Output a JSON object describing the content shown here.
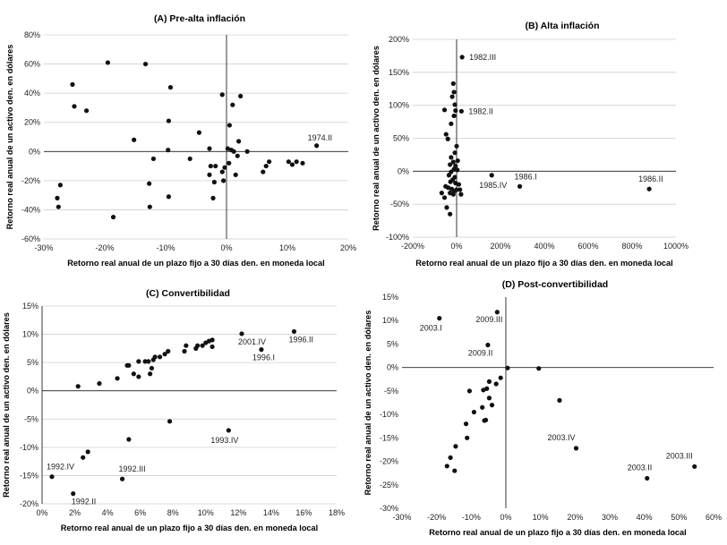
{
  "chart_data": [
    {
      "type": "scatter",
      "title": "(A) Pre-alta inflación",
      "xlabel": "Retorno real anual de un plazo fijo a 30 días den. en moneda local",
      "ylabel": "Retorno real anual de un activo den. en dólares",
      "xlim": [
        -30,
        20
      ],
      "ylim": [
        -60,
        80
      ],
      "xticks": [
        -30,
        -20,
        -10,
        0,
        10,
        20
      ],
      "xtick_labels": [
        "-30%",
        "-20%",
        "-10%",
        "0%",
        "10%",
        "20%"
      ],
      "yticks": [
        -60,
        -40,
        -20,
        0,
        20,
        40,
        60,
        80
      ],
      "ytick_labels": [
        "-60%",
        "-40%",
        "-20%",
        "0%",
        "20%",
        "40%",
        "60%",
        "80%"
      ],
      "grid": "horizontal",
      "points": [
        {
          "x": -19.5,
          "y": 61
        },
        {
          "x": -13.3,
          "y": 60
        },
        {
          "x": -25.3,
          "y": 46
        },
        {
          "x": -25.0,
          "y": 31
        },
        {
          "x": -23.0,
          "y": 28
        },
        {
          "x": -9.2,
          "y": 44
        },
        {
          "x": 1.0,
          "y": 32
        },
        {
          "x": 2.3,
          "y": 38
        },
        {
          "x": -0.7,
          "y": 39
        },
        {
          "x": -9.5,
          "y": 21
        },
        {
          "x": -4.5,
          "y": 13
        },
        {
          "x": 0.5,
          "y": 18
        },
        {
          "x": -15.2,
          "y": 8
        },
        {
          "x": 2.0,
          "y": 7
        },
        {
          "x": -9.6,
          "y": 1
        },
        {
          "x": -2.8,
          "y": 2
        },
        {
          "x": 0.2,
          "y": 2
        },
        {
          "x": 0.8,
          "y": 1
        },
        {
          "x": 1.2,
          "y": 0
        },
        {
          "x": 3.4,
          "y": 0
        },
        {
          "x": 14.8,
          "y": 4,
          "label": "1974.II"
        },
        {
          "x": -12.0,
          "y": -5
        },
        {
          "x": -6.0,
          "y": -5
        },
        {
          "x": 0.4,
          "y": -8
        },
        {
          "x": 1.8,
          "y": -3
        },
        {
          "x": 7.0,
          "y": -7
        },
        {
          "x": 6.5,
          "y": -10
        },
        {
          "x": 10.2,
          "y": -7
        },
        {
          "x": 10.8,
          "y": -9
        },
        {
          "x": 11.5,
          "y": -7
        },
        {
          "x": 12.5,
          "y": -8
        },
        {
          "x": -0.3,
          "y": -11
        },
        {
          "x": -1.8,
          "y": -10
        },
        {
          "x": -2.6,
          "y": -10
        },
        {
          "x": -2.8,
          "y": -16
        },
        {
          "x": -0.7,
          "y": -14
        },
        {
          "x": 6.0,
          "y": -14
        },
        {
          "x": 1.5,
          "y": -16
        },
        {
          "x": -2.0,
          "y": -21
        },
        {
          "x": -0.5,
          "y": -20
        },
        {
          "x": -12.7,
          "y": -22
        },
        {
          "x": -9.5,
          "y": -31
        },
        {
          "x": -2.2,
          "y": -32
        },
        {
          "x": -12.6,
          "y": -38
        },
        {
          "x": -27.3,
          "y": -23
        },
        {
          "x": -27.8,
          "y": -32
        },
        {
          "x": -27.6,
          "y": -38
        },
        {
          "x": -18.6,
          "y": -45
        }
      ]
    },
    {
      "type": "scatter",
      "title": "(B) Alta inflación",
      "xlabel": "Retorno real anual de un plazo fijo a 30 días den. en moneda local",
      "ylabel": "Retorno real anual de un activo den. en dólares",
      "xlim": [
        -200,
        1000
      ],
      "ylim": [
        -100,
        200
      ],
      "xticks": [
        -200,
        0,
        200,
        400,
        600,
        800,
        1000
      ],
      "xtick_labels": [
        "-200%",
        "0%",
        "200%",
        "400%",
        "600%",
        "800%",
        "1000%"
      ],
      "yticks": [
        -100,
        -50,
        0,
        50,
        100,
        150,
        200
      ],
      "ytick_labels": [
        "-100%",
        "-50%",
        "0%",
        "50%",
        "100%",
        "150%",
        "200%"
      ],
      "grid": "horizontal",
      "points": [
        {
          "x": 25,
          "y": 173,
          "label": "1982.III"
        },
        {
          "x": 22,
          "y": 91,
          "label": "1982.II"
        },
        {
          "x": 160,
          "y": -6,
          "label": "1985.IV"
        },
        {
          "x": 288,
          "y": -23,
          "label": "1986.I"
        },
        {
          "x": 878,
          "y": -27,
          "label": "1986.II"
        },
        {
          "x": -15,
          "y": 133
        },
        {
          "x": -12,
          "y": 120
        },
        {
          "x": -20,
          "y": 113
        },
        {
          "x": -8,
          "y": 101
        },
        {
          "x": -5,
          "y": 92
        },
        {
          "x": -55,
          "y": 93
        },
        {
          "x": -12,
          "y": 84
        },
        {
          "x": -25,
          "y": 72
        },
        {
          "x": -48,
          "y": 56
        },
        {
          "x": -40,
          "y": 49
        },
        {
          "x": 0,
          "y": 38
        },
        {
          "x": -8,
          "y": 28
        },
        {
          "x": -25,
          "y": 21
        },
        {
          "x": -15,
          "y": 14
        },
        {
          "x": 5,
          "y": 16
        },
        {
          "x": -30,
          "y": 10
        },
        {
          "x": -5,
          "y": 8
        },
        {
          "x": -12,
          "y": 3
        },
        {
          "x": 3,
          "y": 2
        },
        {
          "x": -25,
          "y": -1
        },
        {
          "x": -35,
          "y": -6
        },
        {
          "x": -8,
          "y": -9
        },
        {
          "x": -18,
          "y": -13
        },
        {
          "x": -28,
          "y": -16
        },
        {
          "x": -5,
          "y": -18
        },
        {
          "x": 10,
          "y": -20
        },
        {
          "x": -50,
          "y": -23
        },
        {
          "x": -38,
          "y": -25
        },
        {
          "x": -22,
          "y": -27
        },
        {
          "x": -10,
          "y": -30
        },
        {
          "x": 0,
          "y": -28
        },
        {
          "x": 15,
          "y": -28
        },
        {
          "x": -68,
          "y": -33
        },
        {
          "x": -30,
          "y": -33
        },
        {
          "x": -15,
          "y": -35
        },
        {
          "x": 20,
          "y": -35
        },
        {
          "x": -55,
          "y": -40
        },
        {
          "x": -45,
          "y": -55
        },
        {
          "x": -30,
          "y": -65
        }
      ]
    },
    {
      "type": "scatter",
      "title": "(C) Convertibilidad",
      "xlabel": "Retorno real anual de un plazo fijo a 30 días den. en moneda local",
      "ylabel": "Retorno real anual de un activo den. en dólares",
      "xlim": [
        0,
        18
      ],
      "ylim": [
        -20,
        15
      ],
      "xticks": [
        0,
        2,
        4,
        6,
        8,
        10,
        12,
        14,
        16,
        18
      ],
      "xtick_labels": [
        "0%",
        "2%",
        "4%",
        "6%",
        "8%",
        "10%",
        "12%",
        "14%",
        "16%",
        "18%"
      ],
      "yticks": [
        -20,
        -15,
        -10,
        -5,
        0,
        5,
        10,
        15
      ],
      "ytick_labels": [
        "-20%",
        "-15%",
        "-10%",
        "-5%",
        "0%",
        "5%",
        "10%",
        "15%"
      ],
      "grid": "horizontal",
      "points": [
        {
          "x": 0.6,
          "y": -15.2,
          "label": "1992.IV"
        },
        {
          "x": 1.9,
          "y": -18.2,
          "label": "1992.II"
        },
        {
          "x": 4.9,
          "y": -15.6,
          "label": "1992.III"
        },
        {
          "x": 11.4,
          "y": -7.0,
          "label": "1993.IV"
        },
        {
          "x": 12.2,
          "y": 10.1,
          "label": "2001.IV"
        },
        {
          "x": 15.4,
          "y": 10.5,
          "label": "1996.II"
        },
        {
          "x": 13.4,
          "y": 7.3,
          "label": "1996.I"
        },
        {
          "x": 2.2,
          "y": 0.8
        },
        {
          "x": 3.5,
          "y": 1.3
        },
        {
          "x": 4.6,
          "y": 2.2
        },
        {
          "x": 5.2,
          "y": 4.5
        },
        {
          "x": 5.3,
          "y": 4.5
        },
        {
          "x": 5.6,
          "y": 3.0
        },
        {
          "x": 5.9,
          "y": 2.5
        },
        {
          "x": 5.9,
          "y": 5.2
        },
        {
          "x": 6.3,
          "y": 5.2
        },
        {
          "x": 6.5,
          "y": 5.2
        },
        {
          "x": 6.6,
          "y": 3.0
        },
        {
          "x": 6.7,
          "y": 4.0
        },
        {
          "x": 6.8,
          "y": 5.5
        },
        {
          "x": 6.9,
          "y": 6.0
        },
        {
          "x": 7.2,
          "y": 6.0
        },
        {
          "x": 7.5,
          "y": 6.5
        },
        {
          "x": 7.7,
          "y": 7.0
        },
        {
          "x": 8.7,
          "y": 7.0
        },
        {
          "x": 8.8,
          "y": 8.0
        },
        {
          "x": 9.4,
          "y": 7.5
        },
        {
          "x": 9.5,
          "y": 8.0
        },
        {
          "x": 9.8,
          "y": 8.0
        },
        {
          "x": 10.0,
          "y": 8.5
        },
        {
          "x": 10.2,
          "y": 8.8
        },
        {
          "x": 10.4,
          "y": 9.0
        },
        {
          "x": 10.4,
          "y": 7.8
        },
        {
          "x": 7.8,
          "y": -5.4
        },
        {
          "x": 5.3,
          "y": -8.6
        },
        {
          "x": 2.8,
          "y": -10.8
        },
        {
          "x": 2.5,
          "y": -11.8
        }
      ]
    },
    {
      "type": "scatter",
      "title": "(D) Post-convertibilidad",
      "xlabel": "Retorno real anual de un plazo fijo a 30 días den. en moneda local",
      "ylabel": "Retorno real anual de un activo den. en dólares",
      "xlim": [
        -30,
        60
      ],
      "ylim": [
        -30,
        15
      ],
      "xticks": [
        -30,
        -20,
        -10,
        0,
        10,
        20,
        30,
        40,
        50,
        60
      ],
      "xtick_labels": [
        "-30%",
        "-20%",
        "-10%",
        "0%",
        "10%",
        "20%",
        "30%",
        "40%",
        "50%",
        "60%"
      ],
      "yticks": [
        -30,
        -25,
        -20,
        -15,
        -10,
        -5,
        0,
        5,
        10,
        15
      ],
      "ytick_labels": [
        "-30%",
        "-25%",
        "-20%",
        "-15%",
        "-10%",
        "-5%",
        "0%",
        "5%",
        "10%",
        "15%"
      ],
      "grid": "none",
      "points": [
        {
          "x": -19.2,
          "y": 10.5,
          "label": "2003.I"
        },
        {
          "x": -2.5,
          "y": 11.8,
          "label": "2009.III"
        },
        {
          "x": -5.2,
          "y": 4.8,
          "label": "2009.II"
        },
        {
          "x": 20.3,
          "y": -17.2,
          "label": "2003.IV"
        },
        {
          "x": 40.8,
          "y": -23.6,
          "label": "2003.II"
        },
        {
          "x": 54.5,
          "y": -21.1,
          "label": "2003.III"
        },
        {
          "x": 0.5,
          "y": -0.1
        },
        {
          "x": 9.5,
          "y": -0.2
        },
        {
          "x": 15.5,
          "y": -7.0
        },
        {
          "x": -1.5,
          "y": -2.2
        },
        {
          "x": -2.8,
          "y": -3.5
        },
        {
          "x": -4.8,
          "y": -3.0
        },
        {
          "x": -5.5,
          "y": -4.5
        },
        {
          "x": -6.5,
          "y": -4.8
        },
        {
          "x": -10.5,
          "y": -5.0
        },
        {
          "x": -4.8,
          "y": -6.5
        },
        {
          "x": -4.0,
          "y": -8.0
        },
        {
          "x": -6.8,
          "y": -8.5
        },
        {
          "x": -9.2,
          "y": -9.5
        },
        {
          "x": -5.8,
          "y": -11.2
        },
        {
          "x": -6.2,
          "y": -11.3
        },
        {
          "x": -11.5,
          "y": -12.0
        },
        {
          "x": -11.2,
          "y": -15.0
        },
        {
          "x": -14.5,
          "y": -16.8
        },
        {
          "x": -16.0,
          "y": -19.2
        },
        {
          "x": -17.0,
          "y": -21.0
        },
        {
          "x": -14.8,
          "y": -22.0
        }
      ]
    }
  ]
}
